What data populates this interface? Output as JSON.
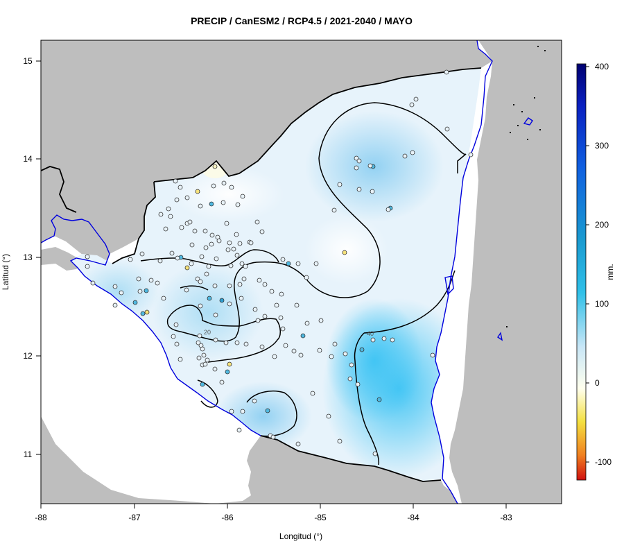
{
  "title": "PRECIP / CanESM2 / RCP4.5 / 2021-2040 / MAYO",
  "x_axis": {
    "label": "Longitud (°)",
    "ticks": [
      "-88",
      "-87",
      "-86",
      "-85",
      "-84",
      "-83"
    ]
  },
  "y_axis": {
    "label": "Latitud (°)",
    "ticks": [
      "11",
      "12",
      "13",
      "14",
      "15"
    ]
  },
  "colorbar": {
    "unit_label": "mm.",
    "ticks": [
      "-100",
      "0",
      "100",
      "200",
      "300",
      "400"
    ],
    "colors": [
      "#d01010",
      "#f08020",
      "#f4e040",
      "#ffffee",
      "#c8e6f6",
      "#30c0e8",
      "#1a9ad0",
      "#1060e0",
      "#0a20c0",
      "#000070"
    ]
  },
  "contour_labels": [
    "20",
    "40"
  ],
  "colors": {
    "land_outside": "#bebebe",
    "sea": "#ffffff",
    "coastline": "#0000dd",
    "border": "#000000",
    "field_low": "#eef6fc",
    "field_mid": "#9ed4f0",
    "field_high": "#3ec4f4"
  }
}
